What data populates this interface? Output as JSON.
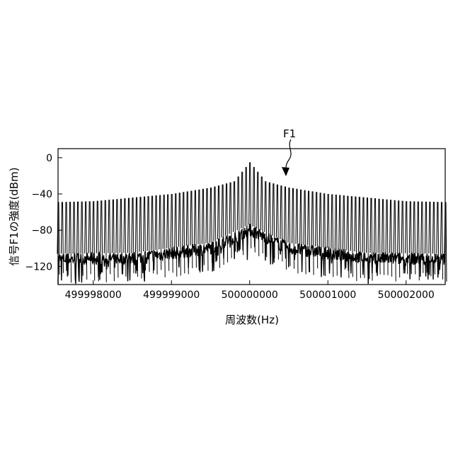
{
  "chart_data": {
    "type": "line",
    "xlabel": "周波数(Hz)",
    "ylabel": "信号F1の強度(dBm)",
    "xlim": [
      499997550,
      500002500
    ],
    "ylim": [
      -140,
      10
    ],
    "x_ticks": [
      499998000,
      499999000,
      500000000,
      500001000,
      500002000
    ],
    "x_tick_labels": [
      "499998000",
      "499999000",
      "500000000",
      "500001000",
      "500002000"
    ],
    "y_ticks": [
      0,
      -40,
      -80,
      -120
    ],
    "y_tick_labels": [
      "0",
      "−40",
      "−80",
      "−120"
    ],
    "grid": false,
    "legend": "none",
    "annotation": {
      "text": "F1",
      "points_to_x": 500000450,
      "points_to_y": -20
    },
    "series": [
      {
        "center": 500000000,
        "comb_spacing": 50,
        "peak_envelope": [
          {
            "x": 499997550,
            "y": -49
          },
          {
            "x": 499998000,
            "y": -48
          },
          {
            "x": 499999000,
            "y": -40
          },
          {
            "x": 499999500,
            "y": -33
          },
          {
            "x": 499999800,
            "y": -26
          },
          {
            "x": 500000000,
            "y": -5
          },
          {
            "x": 500000200,
            "y": -26
          },
          {
            "x": 500000500,
            "y": -33
          },
          {
            "x": 500001000,
            "y": -40
          },
          {
            "x": 500002000,
            "y": -48
          },
          {
            "x": 500002500,
            "y": -49
          }
        ],
        "noise_floor": [
          {
            "x": 499997550,
            "y": -112
          },
          {
            "x": 499998500,
            "y": -111
          },
          {
            "x": 499999500,
            "y": -100
          },
          {
            "x": 500000000,
            "y": -80
          },
          {
            "x": 500000500,
            "y": -100
          },
          {
            "x": 500001500,
            "y": -111
          },
          {
            "x": 500002500,
            "y": -112
          }
        ]
      }
    ]
  }
}
